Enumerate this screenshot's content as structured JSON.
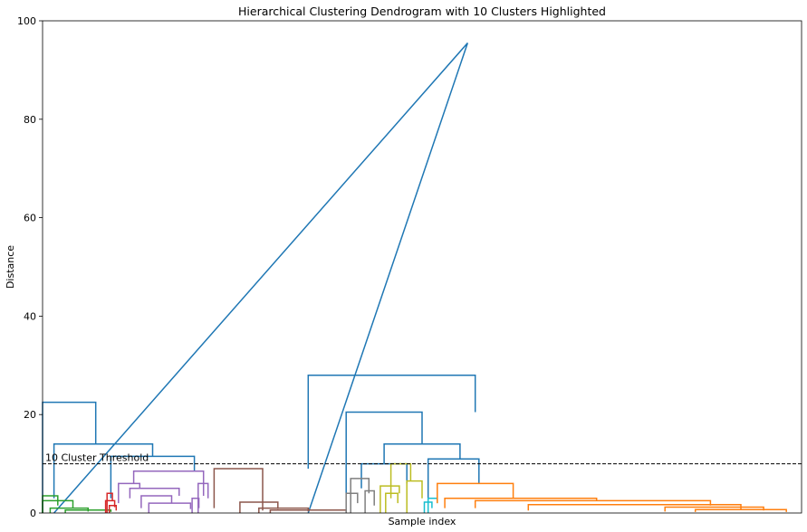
{
  "chart_data": {
    "type": "dendrogram",
    "title": "Hierarchical Clustering Dendrogram with 10 Clusters Highlighted",
    "xlabel": "Sample index",
    "ylabel": "Distance",
    "ylim": [
      0,
      100
    ],
    "yticks": [
      0,
      20,
      40,
      60,
      80,
      100
    ],
    "grid": false,
    "threshold": {
      "value": 10,
      "label": "10 Cluster Threshold"
    },
    "colors": {
      "above": "#1f77b4",
      "green": "#2ca02c",
      "red": "#d62728",
      "purple": "#9467bd",
      "brown": "#8c564b",
      "gray": "#7f7f7f",
      "olive": "#bcbd22",
      "cyan": "#17becf",
      "orange": "#ff7f0e"
    },
    "links": [
      {
        "x": [
          0.015,
          0.56,
          0.56,
          0.35
        ],
        "y": [
          0,
          95.5,
          95.5,
          0
        ],
        "color": "above"
      },
      {
        "x": [
          0.0,
          0.0,
          0.07,
          0.07
        ],
        "y": [
          0,
          22.5,
          22.5,
          14
        ],
        "color": "above"
      },
      {
        "x": [
          0.015,
          0.015,
          0.145,
          0.145
        ],
        "y": [
          3,
          14,
          14,
          11.5
        ],
        "color": "above"
      },
      {
        "x": [
          0.09,
          0.09,
          0.2,
          0.2
        ],
        "y": [
          3,
          11.5,
          11.5,
          8.5
        ],
        "color": "above"
      },
      {
        "x": [
          0.35,
          0.35,
          0.57,
          0.57
        ],
        "y": [
          9,
          28,
          28,
          20.5
        ],
        "color": "above"
      },
      {
        "x": [
          0.4,
          0.4,
          0.5,
          0.5
        ],
        "y": [
          4,
          20.5,
          20.5,
          14
        ],
        "color": "above"
      },
      {
        "x": [
          0.45,
          0.45,
          0.55,
          0.55
        ],
        "y": [
          10,
          14,
          14,
          11
        ],
        "color": "above"
      },
      {
        "x": [
          0.42,
          0.42,
          0.48,
          0.48
        ],
        "y": [
          5,
          10,
          10,
          6
        ],
        "color": "above"
      },
      {
        "x": [
          0.508,
          0.508,
          0.575,
          0.575
        ],
        "y": [
          3,
          11,
          11,
          6
        ],
        "color": "above"
      },
      {
        "x": [
          0.0,
          0.0,
          0.02,
          0.02
        ],
        "y": [
          0,
          3.5,
          3.5,
          1.5
        ],
        "color": "green"
      },
      {
        "x": [
          0.0,
          0.0,
          0.04,
          0.04
        ],
        "y": [
          0,
          2.5,
          2.5,
          1
        ],
        "color": "green"
      },
      {
        "x": [
          0.01,
          0.01,
          0.06,
          0.06
        ],
        "y": [
          0,
          1,
          1,
          0.3
        ],
        "color": "green"
      },
      {
        "x": [
          0.03,
          0.03,
          0.09,
          0.09
        ],
        "y": [
          0,
          0.6,
          0.6,
          0.2
        ],
        "color": "green"
      },
      {
        "x": [
          0.085,
          0.085,
          0.092,
          0.092
        ],
        "y": [
          0,
          4,
          4,
          2.5
        ],
        "color": "red"
      },
      {
        "x": [
          0.083,
          0.083,
          0.095,
          0.095
        ],
        "y": [
          0,
          2.5,
          2.5,
          1.2
        ],
        "color": "red"
      },
      {
        "x": [
          0.088,
          0.088,
          0.097,
          0.097
        ],
        "y": [
          0,
          1.5,
          1.5,
          0.5
        ],
        "color": "red"
      },
      {
        "x": [
          0.12,
          0.12,
          0.212,
          0.212
        ],
        "y": [
          6,
          8.5,
          8.5,
          3.5
        ],
        "color": "purple"
      },
      {
        "x": [
          0.1,
          0.1,
          0.128,
          0.128
        ],
        "y": [
          2,
          6,
          6,
          5
        ],
        "color": "purple"
      },
      {
        "x": [
          0.115,
          0.115,
          0.18,
          0.18
        ],
        "y": [
          3,
          5,
          5,
          3.5
        ],
        "color": "purple"
      },
      {
        "x": [
          0.13,
          0.13,
          0.17,
          0.17
        ],
        "y": [
          1,
          3.5,
          3.5,
          2
        ],
        "color": "purple"
      },
      {
        "x": [
          0.205,
          0.205,
          0.218,
          0.218
        ],
        "y": [
          0,
          6,
          6,
          3
        ],
        "color": "purple"
      },
      {
        "x": [
          0.197,
          0.197,
          0.206,
          0.206
        ],
        "y": [
          0,
          3,
          3,
          1
        ],
        "color": "purple"
      },
      {
        "x": [
          0.14,
          0.14,
          0.195,
          0.195
        ],
        "y": [
          0,
          2,
          2,
          0.8
        ],
        "color": "purple"
      },
      {
        "x": [
          0.226,
          0.226,
          0.29,
          0.29
        ],
        "y": [
          1,
          9,
          9,
          0.5
        ],
        "color": "brown"
      },
      {
        "x": [
          0.26,
          0.26,
          0.31,
          0.31
        ],
        "y": [
          0,
          2.2,
          2.2,
          0.8
        ],
        "color": "brown"
      },
      {
        "x": [
          0.285,
          0.285,
          0.35,
          0.35
        ],
        "y": [
          0,
          1,
          1,
          0.3
        ],
        "color": "brown"
      },
      {
        "x": [
          0.3,
          0.3,
          0.4,
          0.4
        ],
        "y": [
          0,
          0.6,
          0.6,
          0.2
        ],
        "color": "brown"
      },
      {
        "x": [
          0.406,
          0.406,
          0.43,
          0.43
        ],
        "y": [
          0,
          7,
          7,
          4
        ],
        "color": "gray"
      },
      {
        "x": [
          0.4,
          0.4,
          0.415,
          0.415
        ],
        "y": [
          0,
          4,
          4,
          2
        ],
        "color": "gray"
      },
      {
        "x": [
          0.425,
          0.425,
          0.437,
          0.437
        ],
        "y": [
          0,
          4.5,
          4.5,
          1.5
        ],
        "color": "gray"
      },
      {
        "x": [
          0.459,
          0.459,
          0.485,
          0.485
        ],
        "y": [
          3,
          10,
          10,
          6.5
        ],
        "color": "olive"
      },
      {
        "x": [
          0.445,
          0.445,
          0.47,
          0.47
        ],
        "y": [
          0,
          5.5,
          5.5,
          4
        ],
        "color": "olive"
      },
      {
        "x": [
          0.452,
          0.452,
          0.468,
          0.468
        ],
        "y": [
          0,
          4,
          4,
          2
        ],
        "color": "olive"
      },
      {
        "x": [
          0.48,
          0.48,
          0.5,
          0.5
        ],
        "y": [
          0,
          6.5,
          6.5,
          3
        ],
        "color": "olive"
      },
      {
        "x": [
          0.508,
          0.508,
          0.52,
          0.52
        ],
        "y": [
          0,
          3,
          3,
          2
        ],
        "color": "cyan"
      },
      {
        "x": [
          0.503,
          0.503,
          0.513,
          0.513
        ],
        "y": [
          0,
          2.2,
          2.2,
          1
        ],
        "color": "cyan"
      },
      {
        "x": [
          0.52,
          0.52,
          0.62,
          0.62
        ],
        "y": [
          2,
          6,
          6,
          3
        ],
        "color": "orange"
      },
      {
        "x": [
          0.53,
          0.53,
          0.73,
          0.73
        ],
        "y": [
          1,
          3,
          3,
          2.5
        ],
        "color": "orange"
      },
      {
        "x": [
          0.57,
          0.57,
          0.88,
          0.88
        ],
        "y": [
          1,
          2.5,
          2.5,
          1.5
        ],
        "color": "orange"
      },
      {
        "x": [
          0.64,
          0.64,
          0.92,
          0.92
        ],
        "y": [
          0.5,
          1.7,
          1.7,
          0.8
        ],
        "color": "orange"
      },
      {
        "x": [
          0.82,
          0.82,
          0.95,
          0.95
        ],
        "y": [
          0.3,
          1.2,
          1.2,
          0.5
        ],
        "color": "orange"
      },
      {
        "x": [
          0.86,
          0.86,
          0.98,
          0.98
        ],
        "y": [
          0.2,
          0.7,
          0.7,
          0.2
        ],
        "color": "orange"
      }
    ]
  }
}
